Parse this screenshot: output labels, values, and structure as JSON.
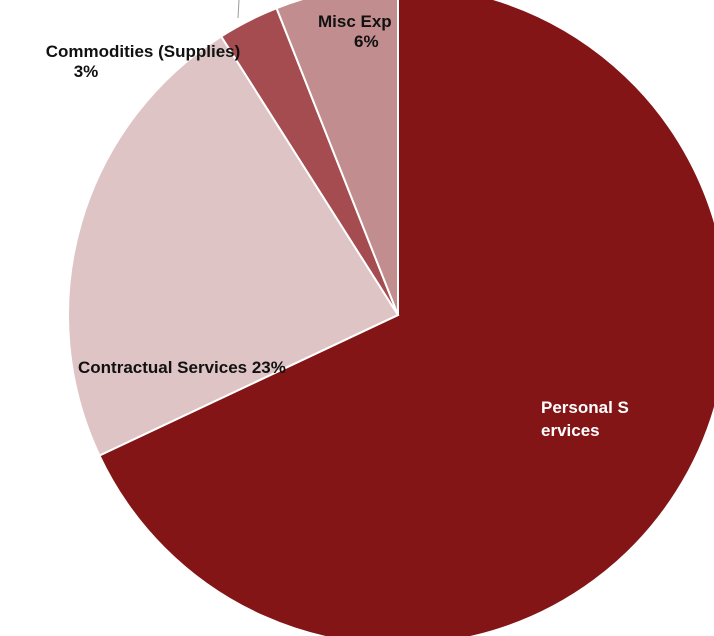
{
  "chart_data": {
    "type": "pie",
    "slices": [
      {
        "label": "Personal Services",
        "label_text": "Personal Services",
        "value": 68,
        "color": "#841517"
      },
      {
        "label": "Contractual Services",
        "label_text": "Contractual Services 23%",
        "value": 23,
        "color": "#dfc4c5"
      },
      {
        "label": "Commodities (Supplies)",
        "label_text": "Commodities (Supplies)",
        "pct_text": "3%",
        "value": 3,
        "color": "#a44c4f"
      },
      {
        "label": "Misc Exp",
        "label_text": "Misc Exp",
        "pct_text": "6%",
        "value": 6,
        "color": "#c18d8e"
      }
    ],
    "start_angle_deg": 0,
    "direction": "clockwise"
  }
}
